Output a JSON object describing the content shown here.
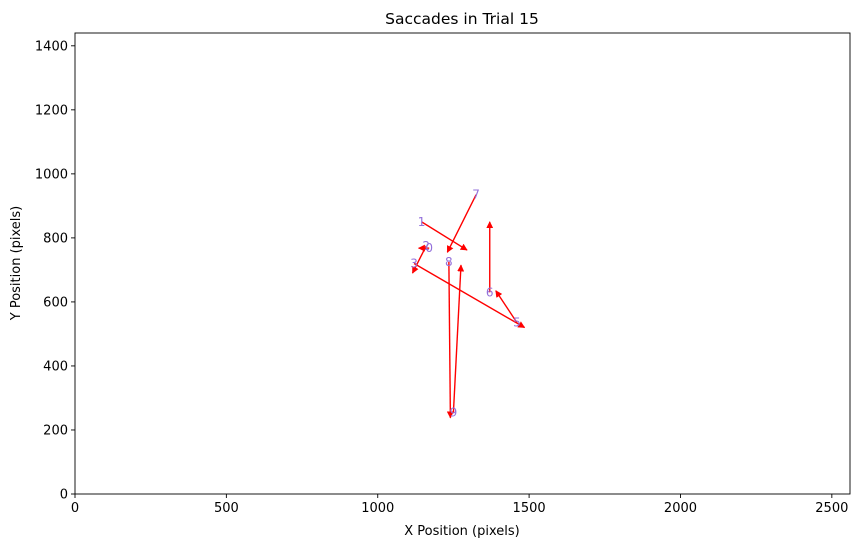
{
  "chart_data": {
    "type": "scatter",
    "title": "Saccades in Trial 15",
    "xlabel": "X Position (pixels)",
    "ylabel": "Y Position (pixels)",
    "xlim": [
      0,
      2560
    ],
    "ylim": [
      0,
      1440
    ],
    "xticks": [
      0,
      500,
      1000,
      1500,
      2000,
      2500
    ],
    "yticks": [
      0,
      200,
      400,
      600,
      800,
      1000,
      1200,
      1400
    ],
    "arrow_color": "#ff0000",
    "label_color": "#9370db",
    "grid": false,
    "saccades": [
      {
        "label": "1",
        "start": [
          1145,
          850
        ],
        "end": [
          1295,
          762
        ]
      },
      {
        "label": "2",
        "start": [
          1160,
          775
        ],
        "end": [
          1115,
          690
        ]
      },
      {
        "label": "3",
        "start": [
          1120,
          720
        ],
        "end": [
          1485,
          520
        ]
      },
      {
        "label": "5",
        "start": [
          1460,
          535
        ],
        "end": [
          1390,
          635
        ]
      },
      {
        "label": "6",
        "start": [
          1370,
          630
        ],
        "end": [
          1370,
          850
        ]
      },
      {
        "label": "7",
        "start": [
          1325,
          935
        ],
        "end": [
          1230,
          755
        ]
      },
      {
        "label": "8",
        "start": [
          1235,
          725
        ],
        "end": [
          1240,
          238
        ]
      },
      {
        "label": "9",
        "start": [
          1250,
          255
        ],
        "end": [
          1275,
          715
        ]
      },
      {
        "label": "0",
        "start": [
          1170,
          768
        ],
        "end": [
          1135,
          768
        ]
      }
    ]
  }
}
